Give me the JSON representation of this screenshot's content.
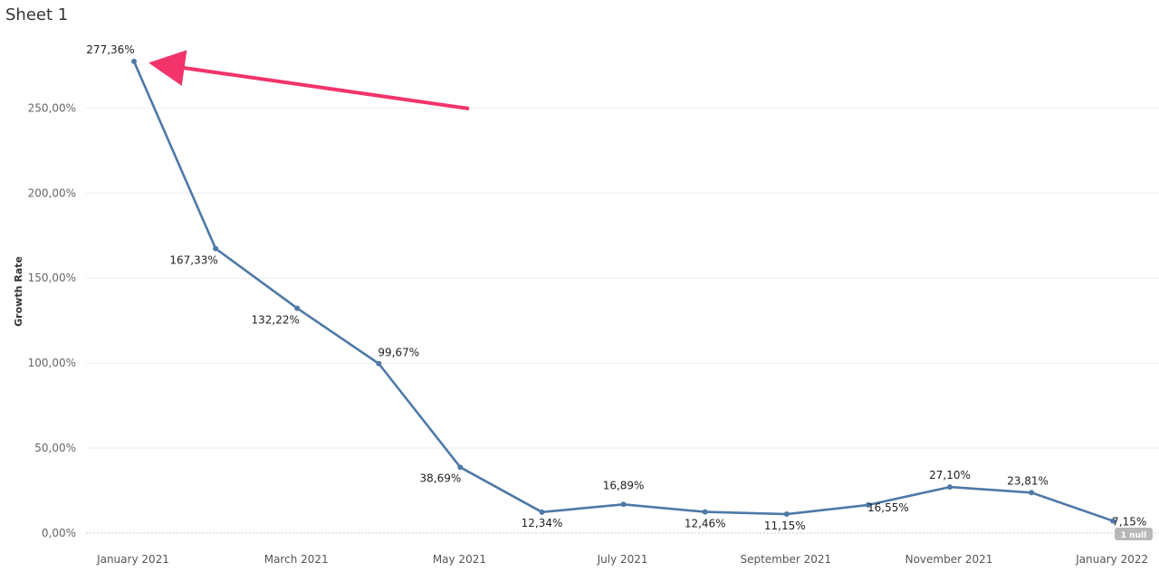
{
  "sheet_title": "Sheet 1",
  "null_badge": "1 null",
  "colors": {
    "line": "#4e79a7",
    "arrow": "#f2346b",
    "grid": "#eeeeee"
  },
  "chart_data": {
    "type": "line",
    "ylabel": "Growth Rate",
    "ylim": [
      0,
      290
    ],
    "y_ticks": [
      0,
      50,
      100,
      150,
      200,
      250
    ],
    "y_tick_labels": [
      "0,00%",
      "50,00%",
      "100,00%",
      "150,00%",
      "200,00%",
      "250,00%"
    ],
    "x": [
      "2021-01",
      "2021-02",
      "2021-03",
      "2021-04",
      "2021-05",
      "2021-06",
      "2021-07",
      "2021-08",
      "2021-09",
      "2021-10",
      "2021-11",
      "2021-12",
      "2022-01"
    ],
    "x_tick_labels": [
      "January 2021",
      "March 2021",
      "May 2021",
      "July 2021",
      "September 2021",
      "November 2021",
      "January 2022"
    ],
    "x_tick_positions": [
      "2021-01",
      "2021-03",
      "2021-05",
      "2021-07",
      "2021-09",
      "2021-11",
      "2022-01"
    ],
    "series": [
      {
        "values": [
          277.36,
          167.33,
          132.22,
          99.67,
          38.69,
          12.34,
          16.89,
          12.46,
          11.15,
          16.55,
          27.1,
          23.81,
          7.15
        ],
        "labels": [
          "277,36%",
          "167,33%",
          "132,22%",
          "99,67%",
          "38,69%",
          "12,34%",
          "16,89%",
          "12,46%",
          "11,15%",
          "16,55%",
          "27,10%",
          "23,81%",
          "7,15%"
        ]
      }
    ],
    "annotation": "arrow pointing at the first point"
  }
}
